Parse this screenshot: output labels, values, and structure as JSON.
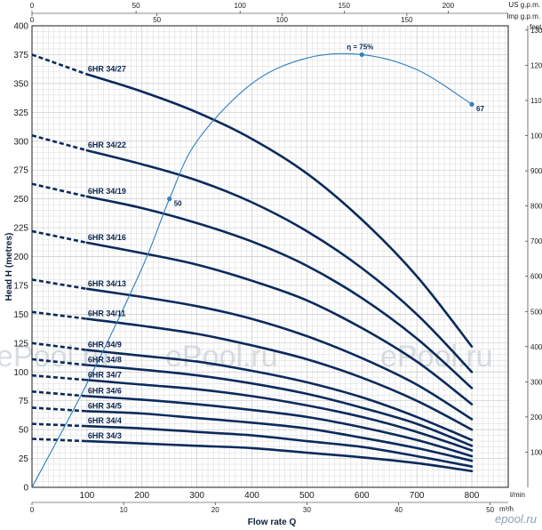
{
  "chart_data": {
    "type": "line",
    "xlabel": "Flow rate Q",
    "ylabel": "Head H (metres)",
    "x_unit": "l/min",
    "xlim": [
      0,
      850
    ],
    "ylim": [
      0,
      400
    ],
    "x_ticks": [
      100,
      200,
      300,
      400,
      500,
      600,
      700,
      800
    ],
    "y_ticks": [
      25,
      50,
      75,
      100,
      125,
      150,
      175,
      200,
      225,
      250,
      275,
      300,
      325,
      350,
      375,
      400
    ],
    "secondary_axes": {
      "top1": {
        "unit": "US g.p.m.",
        "ticks": [
          0,
          50,
          100,
          150,
          200
        ]
      },
      "top2": {
        "unit": "Imp g.p.m.",
        "ticks": [
          0,
          50,
          100,
          150
        ]
      },
      "bottom2": {
        "unit": "m³/h",
        "ticks": [
          0,
          10,
          20,
          30,
          40,
          50
        ]
      },
      "right": {
        "unit": "feet",
        "ticks": [
          100,
          200,
          300,
          400,
          500,
          600,
          700,
          800,
          900,
          1000,
          1100,
          1200,
          1300
        ]
      }
    },
    "series": [
      {
        "name": "6HR 34/27",
        "dashed_segment": [
          [
            0,
            375
          ],
          [
            100,
            358
          ]
        ],
        "points": [
          [
            100,
            358
          ],
          [
            200,
            343
          ],
          [
            300,
            325
          ],
          [
            400,
            302
          ],
          [
            500,
            272
          ],
          [
            600,
            232
          ],
          [
            700,
            183
          ],
          [
            800,
            122
          ]
        ]
      },
      {
        "name": "6HR 34/22",
        "dashed_segment": [
          [
            0,
            305
          ],
          [
            100,
            292
          ]
        ],
        "points": [
          [
            100,
            292
          ],
          [
            200,
            280
          ],
          [
            300,
            266
          ],
          [
            400,
            247
          ],
          [
            500,
            222
          ],
          [
            600,
            190
          ],
          [
            700,
            150
          ],
          [
            800,
            100
          ]
        ]
      },
      {
        "name": "6HR 34/19",
        "dashed_segment": [
          [
            0,
            263
          ],
          [
            100,
            252
          ]
        ],
        "points": [
          [
            100,
            252
          ],
          [
            200,
            242
          ],
          [
            300,
            229
          ],
          [
            400,
            213
          ],
          [
            500,
            192
          ],
          [
            600,
            164
          ],
          [
            700,
            129
          ],
          [
            800,
            86
          ]
        ]
      },
      {
        "name": "6HR 34/16",
        "dashed_segment": [
          [
            0,
            222
          ],
          [
            100,
            212
          ]
        ],
        "points": [
          [
            100,
            212
          ],
          [
            200,
            203
          ],
          [
            300,
            193
          ],
          [
            400,
            179
          ],
          [
            500,
            162
          ],
          [
            600,
            138
          ],
          [
            700,
            109
          ],
          [
            800,
            72
          ]
        ]
      },
      {
        "name": "6HR 34/13",
        "dashed_segment": [
          [
            0,
            180
          ],
          [
            100,
            172
          ]
        ],
        "points": [
          [
            100,
            172
          ],
          [
            200,
            165
          ],
          [
            300,
            157
          ],
          [
            400,
            146
          ],
          [
            500,
            131
          ],
          [
            600,
            112
          ],
          [
            700,
            89
          ],
          [
            800,
            59
          ]
        ]
      },
      {
        "name": "6HR 34/11",
        "dashed_segment": [
          [
            0,
            152
          ],
          [
            100,
            146
          ]
        ],
        "points": [
          [
            100,
            146
          ],
          [
            200,
            140
          ],
          [
            300,
            133
          ],
          [
            400,
            123
          ],
          [
            500,
            111
          ],
          [
            600,
            95
          ],
          [
            700,
            75
          ],
          [
            800,
            50
          ]
        ]
      },
      {
        "name": "6HR 34/9",
        "dashed_segment": [
          [
            0,
            125
          ],
          [
            100,
            119
          ]
        ],
        "points": [
          [
            100,
            119
          ],
          [
            200,
            114
          ],
          [
            300,
            109
          ],
          [
            400,
            101
          ],
          [
            500,
            91
          ],
          [
            600,
            78
          ],
          [
            700,
            61
          ],
          [
            800,
            41
          ]
        ]
      },
      {
        "name": "6HR 34/8",
        "dashed_segment": [
          [
            0,
            111
          ],
          [
            100,
            106
          ]
        ],
        "points": [
          [
            100,
            106
          ],
          [
            200,
            102
          ],
          [
            300,
            97
          ],
          [
            400,
            90
          ],
          [
            500,
            81
          ],
          [
            600,
            69
          ],
          [
            700,
            55
          ],
          [
            800,
            36
          ]
        ]
      },
      {
        "name": "6HR 34/7",
        "dashed_segment": [
          [
            0,
            97
          ],
          [
            100,
            93
          ]
        ],
        "points": [
          [
            100,
            93
          ],
          [
            200,
            89
          ],
          [
            300,
            85
          ],
          [
            400,
            79
          ],
          [
            500,
            71
          ],
          [
            600,
            61
          ],
          [
            700,
            48
          ],
          [
            800,
            32
          ]
        ]
      },
      {
        "name": "6HR 34/6",
        "dashed_segment": [
          [
            0,
            83
          ],
          [
            100,
            79
          ]
        ],
        "points": [
          [
            100,
            79
          ],
          [
            200,
            76
          ],
          [
            300,
            72
          ],
          [
            400,
            67
          ],
          [
            500,
            61
          ],
          [
            600,
            52
          ],
          [
            700,
            41
          ],
          [
            800,
            27
          ]
        ]
      },
      {
        "name": "6HR 34/5",
        "dashed_segment": [
          [
            0,
            69
          ],
          [
            100,
            66
          ]
        ],
        "points": [
          [
            100,
            66
          ],
          [
            200,
            64
          ],
          [
            300,
            60
          ],
          [
            400,
            56
          ],
          [
            500,
            51
          ],
          [
            600,
            43
          ],
          [
            700,
            34
          ],
          [
            800,
            23
          ]
        ]
      },
      {
        "name": "6HR 34/4",
        "dashed_segment": [
          [
            0,
            55
          ],
          [
            100,
            53
          ]
        ],
        "points": [
          [
            100,
            53
          ],
          [
            200,
            51
          ],
          [
            300,
            48
          ],
          [
            400,
            45
          ],
          [
            500,
            40
          ],
          [
            600,
            35
          ],
          [
            700,
            27
          ],
          [
            800,
            18
          ]
        ]
      },
      {
        "name": "6HR 34/3",
        "dashed_segment": [
          [
            0,
            42
          ],
          [
            100,
            40
          ]
        ],
        "points": [
          [
            100,
            40
          ],
          [
            200,
            38
          ],
          [
            300,
            36
          ],
          [
            400,
            34
          ],
          [
            500,
            30
          ],
          [
            600,
            26
          ],
          [
            700,
            21
          ],
          [
            800,
            14
          ]
        ]
      }
    ],
    "efficiency_curve": {
      "label": "η = 75%",
      "points": [
        [
          0,
          0
        ],
        [
          100,
          90
        ],
        [
          200,
          190
        ],
        [
          250,
          250
        ],
        [
          300,
          300
        ],
        [
          400,
          350
        ],
        [
          500,
          372
        ],
        [
          600,
          375
        ],
        [
          700,
          362
        ],
        [
          800,
          332
        ]
      ],
      "markers": [
        {
          "x": 250,
          "y": 250,
          "label": "50"
        },
        {
          "x": 600,
          "y": 375,
          "label": ""
        },
        {
          "x": 800,
          "y": 332,
          "label": "67"
        }
      ]
    },
    "grid": true,
    "colors": {
      "curve": "#0b2a5c",
      "efficiency": "#2f7fc1",
      "grid": "#c9c9c9",
      "axis": "#1b1b1b"
    }
  },
  "watermark": "ePool.ru",
  "brand": "epool.ru"
}
